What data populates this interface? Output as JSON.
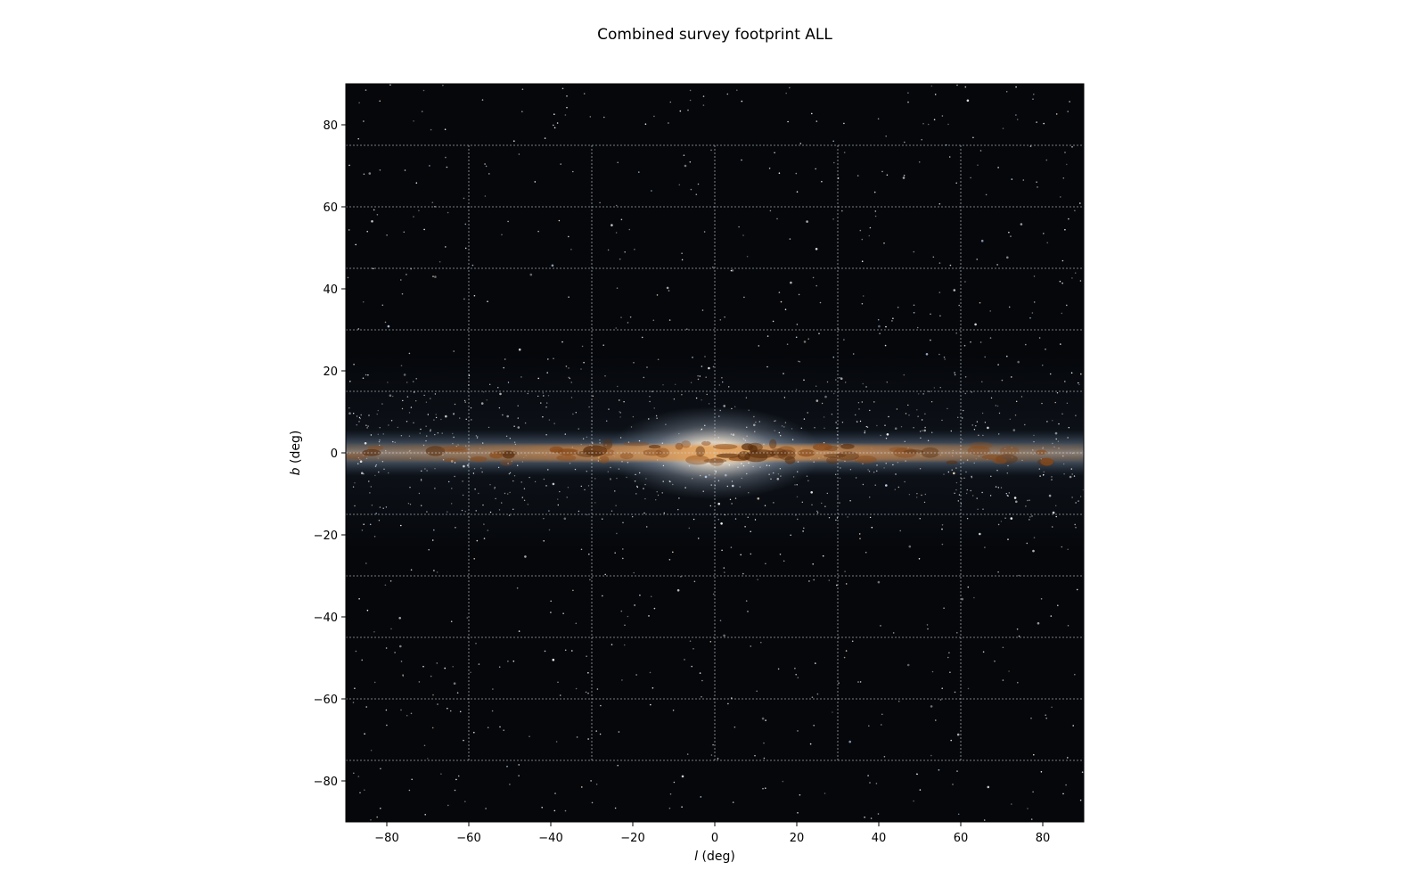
{
  "chart_data": {
    "type": "heatmap",
    "title": "Combined survey footprint ALL",
    "xlabel": "l (deg)",
    "xlabel_var": "l",
    "xlabel_unit": " (deg)",
    "ylabel": "b (deg)",
    "ylabel_var": "b",
    "ylabel_unit": " (deg)",
    "xlim": [
      -90,
      90
    ],
    "ylim": [
      -90,
      90
    ],
    "xticks": [
      -80,
      -60,
      -40,
      -20,
      0,
      20,
      40,
      60,
      80
    ],
    "yticks": [
      -80,
      -60,
      -40,
      -20,
      0,
      20,
      40,
      60,
      80
    ],
    "xtick_labels": [
      "−80",
      "−60",
      "−40",
      "−20",
      "0",
      "20",
      "40",
      "60",
      "80"
    ],
    "ytick_labels": [
      "−80",
      "−60",
      "−40",
      "−20",
      "0",
      "20",
      "40",
      "60",
      "80"
    ],
    "grid": true,
    "grid_style": "dashed",
    "grid_lon_lines": [
      -60,
      -30,
      0,
      30,
      60
    ],
    "grid_lat_lines": [
      -75,
      -60,
      -45,
      -30,
      -15,
      0,
      15,
      30,
      45,
      60,
      75
    ],
    "image_content": "all-sky Milky Way image (galactic plane with dust lanes, bright bulge at center)",
    "colors": {
      "sky_background": "#05070b",
      "galactic_glow": "#6f8aa8",
      "bulge_core": "#fff3dc",
      "dust_lane": "#7a3c12",
      "plane_orange": "#d08a3c",
      "grid_line": "#cfd6de"
    }
  }
}
